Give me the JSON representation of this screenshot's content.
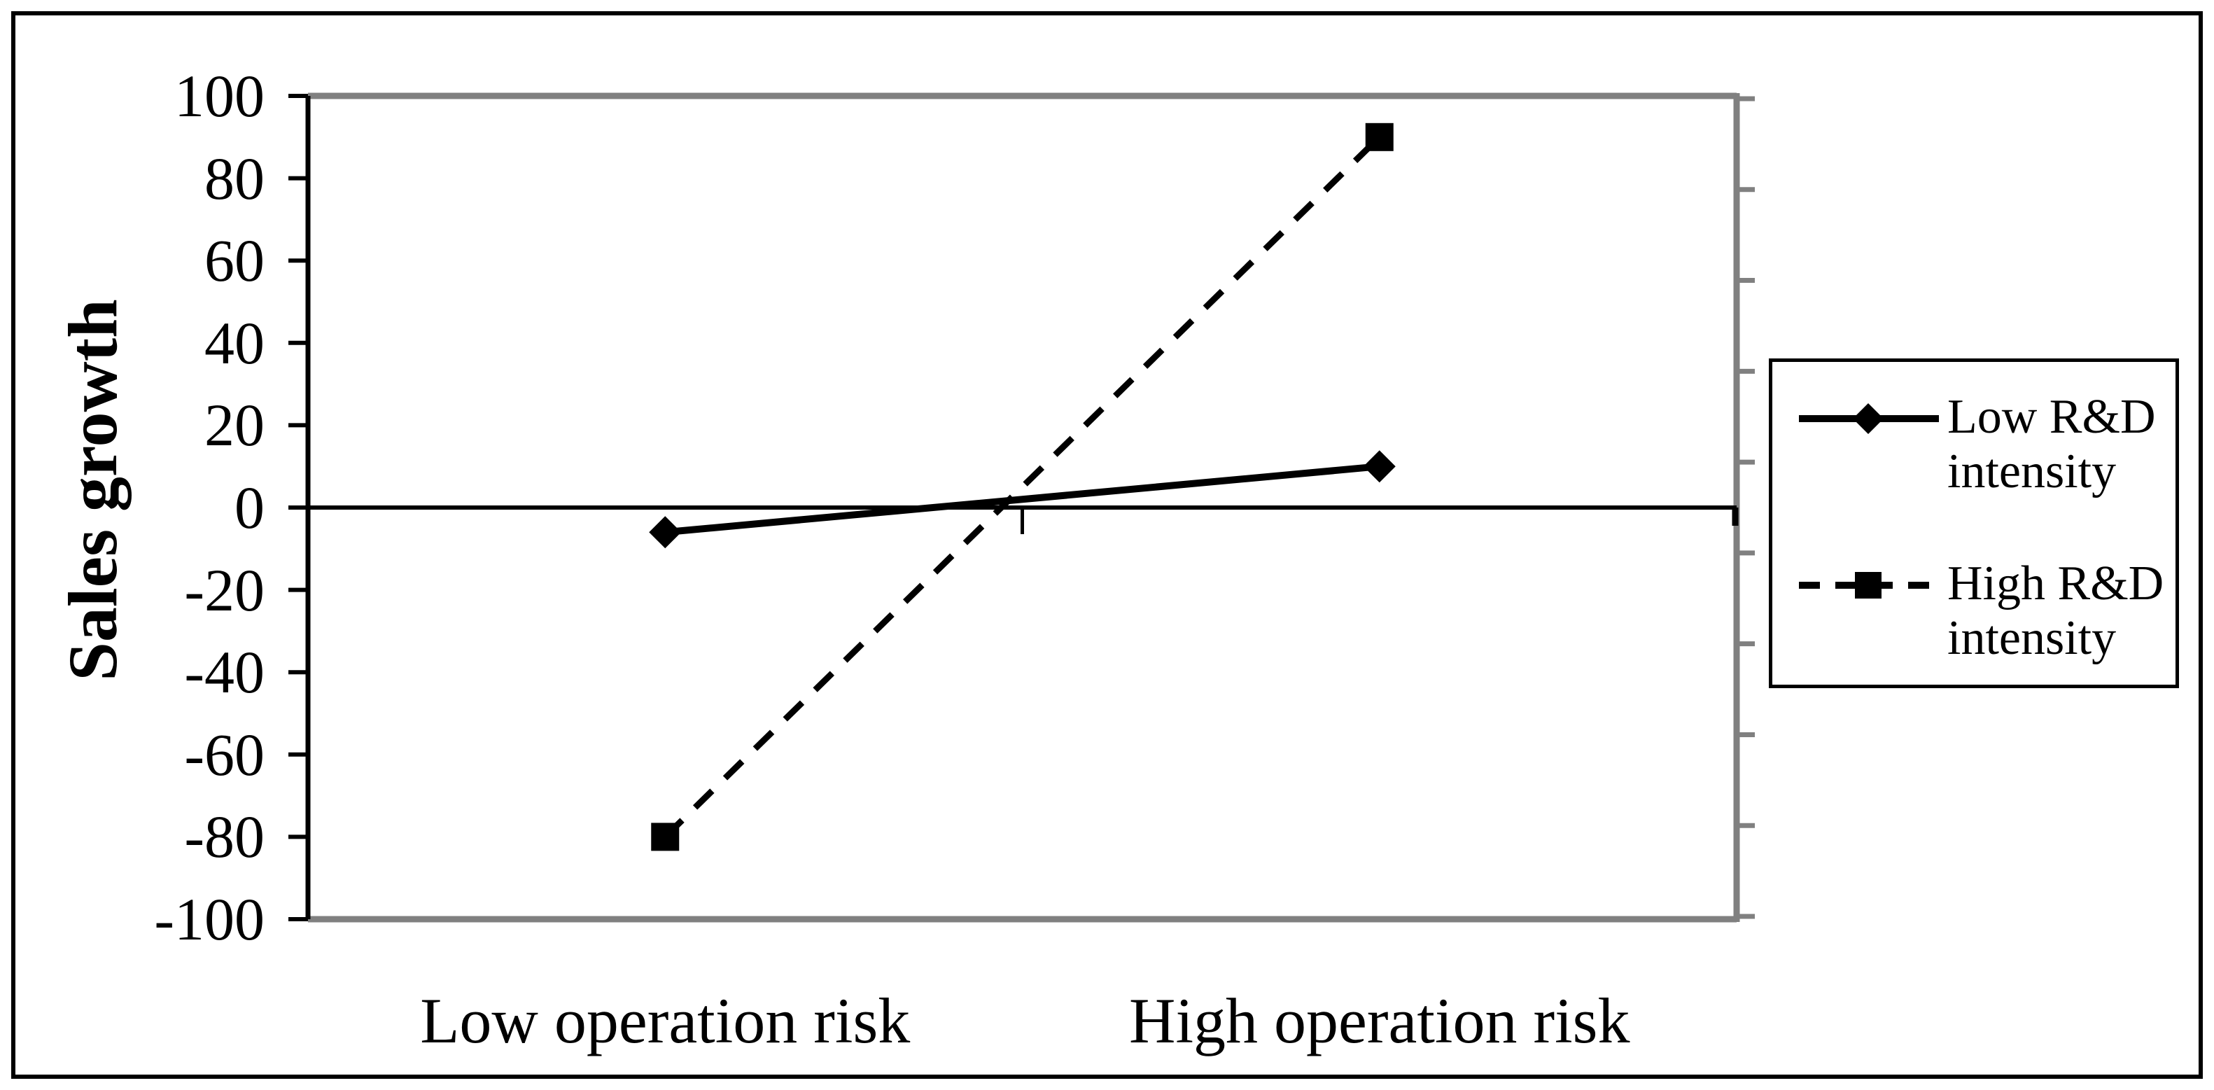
{
  "chart_data": {
    "type": "line",
    "title": "",
    "ylabel": "Sales growth",
    "xlabel": "",
    "categories": [
      "Low operation risk",
      "High operation risk"
    ],
    "series": [
      {
        "name": "Low R&D intensity",
        "values": [
          -6,
          10
        ],
        "line_style": "solid",
        "marker": "diamond",
        "color": "#000000"
      },
      {
        "name": "High R&D intensity",
        "values": [
          -80,
          90
        ],
        "line_style": "dashed",
        "marker": "square",
        "color": "#000000"
      }
    ],
    "ylim": [
      -100,
      100
    ],
    "y_ticks": [
      100,
      80,
      60,
      40,
      20,
      0,
      -20,
      -40,
      -60,
      -80,
      -100
    ],
    "grid": false,
    "legend_position": "right",
    "legend": [
      {
        "lines": [
          "Low R&D",
          "intensity"
        ],
        "marker": "diamond",
        "line_style": "solid"
      },
      {
        "lines": [
          "High R&D",
          "intensity"
        ],
        "marker": "square",
        "line_style": "dashed"
      }
    ],
    "colors": {
      "series": "#000000",
      "plot_border": "#808080",
      "axis": "#000000"
    }
  }
}
